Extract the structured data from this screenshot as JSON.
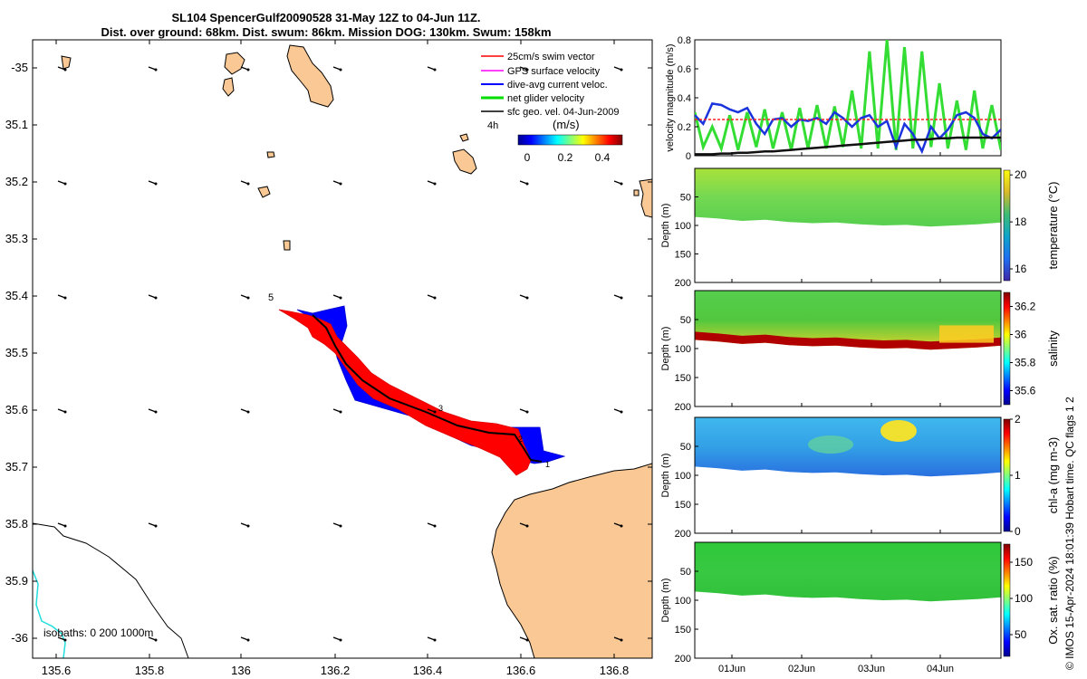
{
  "header": {
    "line1": "SL104 SpencerGulf20090528 31-May 12Z to 04-Jun 11Z.",
    "line2": "Dist. over ground: 68km. Dist. swum: 86km. Mission DOG: 130km. Swum: 158km"
  },
  "map": {
    "x_ticks": [
      "135.6",
      "135.8",
      "136",
      "136.2",
      "136.4",
      "136.6",
      "136.8"
    ],
    "y_ticks": [
      "-35",
      "35.1",
      "35.2",
      "35.3",
      "35.4",
      "35.5",
      "35.6",
      "35.7",
      "35.8",
      "35.9",
      "-36"
    ],
    "legend": [
      {
        "label": "25cm/s swim vector",
        "color": "#ff0000"
      },
      {
        "label": "GPS surface velocity",
        "color": "#ff00ff"
      },
      {
        "label": "dive-avg current veloc.",
        "color": "#0000ff"
      },
      {
        "label": "net glider velocity",
        "color": "#00dd00"
      },
      {
        "label": "sfc geo. vel. 04-Jun-2009",
        "color": "#000000"
      }
    ],
    "time_label": "4h",
    "colorbar_unit": "(m/s)",
    "colorbar_ticks": [
      "0",
      "0.2",
      "0.4"
    ],
    "track_labels": [
      "5",
      "3",
      "2",
      "1"
    ],
    "isobaths_label": "isobaths: 0   200  1000m",
    "colors": {
      "land": "#f9c894",
      "swim": "#ff0000",
      "current": "#0000ff"
    }
  },
  "chart_data": [
    {
      "type": "line",
      "title": "",
      "ylabel": "velocity magnitude (m/s)",
      "ylim": [
        0,
        0.8
      ],
      "yticks": [
        "0",
        "0.2",
        "0.4",
        "0.6",
        "0.8"
      ],
      "x": [
        0,
        0.12,
        0.25,
        0.38,
        0.5,
        0.62,
        0.75,
        0.88,
        1.0,
        1.12,
        1.25,
        1.38,
        1.5,
        1.62,
        1.75,
        1.88,
        2.0,
        2.12,
        2.25,
        2.38,
        2.5,
        2.62,
        2.75,
        2.88,
        3.0,
        3.12,
        3.25,
        3.38,
        3.5,
        3.62,
        3.75,
        3.88,
        4.0,
        4.12,
        4.25,
        4.38
      ],
      "series": [
        {
          "name": "net glider velocity",
          "color": "#33dd33",
          "values": [
            0.3,
            0.06,
            0.2,
            0.05,
            0.28,
            0.04,
            0.3,
            0.06,
            0.32,
            0.05,
            0.3,
            0.04,
            0.33,
            0.05,
            0.35,
            0.05,
            0.34,
            0.06,
            0.45,
            0.05,
            0.72,
            0.05,
            0.8,
            0.04,
            0.75,
            0.05,
            0.72,
            0.06,
            0.5,
            0.05,
            0.38,
            0.04,
            0.45,
            0.05,
            0.35,
            0.04
          ]
        },
        {
          "name": "dive-avg current veloc.",
          "color": "#1a33dd",
          "values": [
            0.28,
            0.22,
            0.36,
            0.35,
            0.32,
            0.3,
            0.33,
            0.22,
            0.15,
            0.25,
            0.26,
            0.2,
            0.25,
            0.24,
            0.26,
            0.22,
            0.3,
            0.26,
            0.2,
            0.26,
            0.28,
            0.2,
            0.24,
            0.06,
            0.22,
            0.15,
            0.03,
            0.2,
            0.12,
            0.18,
            0.28,
            0.3,
            0.26,
            0.15,
            0.12,
            0.18
          ]
        },
        {
          "name": "25cm/s swim vector",
          "color": "#ff2222",
          "values": [
            0.25,
            0.25,
            0.25,
            0.25,
            0.25,
            0.25,
            0.25,
            0.25,
            0.25,
            0.25,
            0.25,
            0.25,
            0.25,
            0.25,
            0.25,
            0.25,
            0.25,
            0.25,
            0.25,
            0.25,
            0.25,
            0.25,
            0.25,
            0.25,
            0.25,
            0.25,
            0.25,
            0.25,
            0.25,
            0.25,
            0.25,
            0.25,
            0.25,
            0.25,
            0.25,
            0.25
          ]
        },
        {
          "name": "sfc geo. vel.",
          "color": "#111111",
          "values": [
            0.01,
            0.01,
            0.01,
            0.015,
            0.015,
            0.02,
            0.02,
            0.025,
            0.03,
            0.03,
            0.035,
            0.04,
            0.045,
            0.05,
            0.055,
            0.06,
            0.065,
            0.07,
            0.075,
            0.08,
            0.085,
            0.09,
            0.095,
            0.1,
            0.105,
            0.11,
            0.11,
            0.115,
            0.12,
            0.12,
            0.125,
            0.125,
            0.125,
            0.125,
            0.125,
            0.125
          ]
        }
      ]
    },
    {
      "type": "heatmap",
      "ylabel": "Depth (m)",
      "ylim": [
        200,
        0
      ],
      "yticks": [
        "50",
        "100",
        "150",
        "200"
      ],
      "colorbar_label": "temperature (°C)",
      "colorbar_ticks": [
        "16",
        "18",
        "20"
      ],
      "clim": [
        15.5,
        20.2
      ]
    },
    {
      "type": "heatmap",
      "ylabel": "Depth (m)",
      "ylim": [
        200,
        0
      ],
      "yticks": [
        "50",
        "100",
        "150",
        "200"
      ],
      "colorbar_label": "salinity",
      "colorbar_ticks": [
        "35.6",
        "35.8",
        "36",
        "36.2"
      ],
      "clim": [
        35.5,
        36.3
      ]
    },
    {
      "type": "heatmap",
      "ylabel": "Depth (m)",
      "ylim": [
        200,
        0
      ],
      "yticks": [
        "50",
        "100",
        "150",
        "200"
      ],
      "colorbar_label": "chl-a (mg m-3)",
      "colorbar_ticks": [
        "0",
        "1",
        "2"
      ],
      "clim": [
        0,
        2
      ]
    },
    {
      "type": "heatmap",
      "ylabel": "Depth (m)",
      "ylim": [
        200,
        0
      ],
      "yticks": [
        "50",
        "100",
        "150",
        "200"
      ],
      "colorbar_label": "Ox. sat. ratio (%)",
      "colorbar_ticks": [
        "50",
        "100",
        "150"
      ],
      "clim": [
        20,
        175
      ],
      "xticks": [
        "01Jun",
        "02Jun",
        "03Jun",
        "04Jun"
      ]
    }
  ],
  "footer": {
    "credit": "© IMOS 15-Apr-2024 18:01:39 Hobart time. QC flags 1  2"
  }
}
